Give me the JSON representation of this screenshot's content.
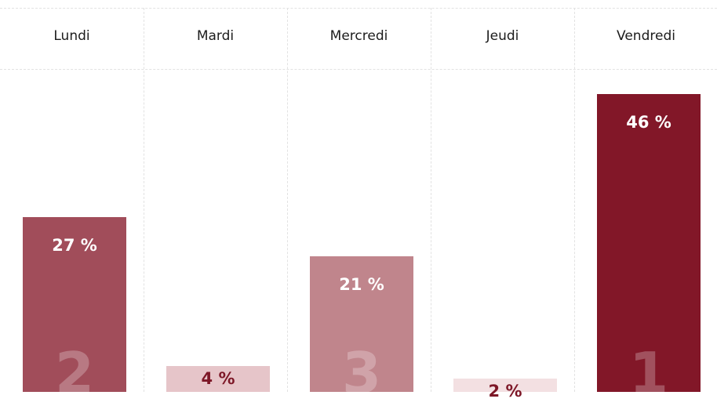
{
  "chart_data": {
    "type": "bar",
    "categories": [
      "Lundi",
      "Mardi",
      "Mercredi",
      "Jeudi",
      "Vendredi"
    ],
    "values": [
      27,
      4,
      21,
      2,
      46
    ],
    "value_labels": [
      "27 %",
      "4 %",
      "21 %",
      "2 %",
      "46 %"
    ],
    "ranks": [
      "2",
      "",
      "3",
      "",
      "1"
    ],
    "colors": [
      "#a14d5a",
      "#e6c5c9",
      "#c0858c",
      "#f3e0e2",
      "#821728"
    ],
    "label_colors": [
      "#ffffff",
      "#7d1727",
      "#ffffff",
      "#7d1727",
      "#ffffff"
    ],
    "ylim": [
      0,
      46
    ],
    "grid": true,
    "legend": "none"
  }
}
